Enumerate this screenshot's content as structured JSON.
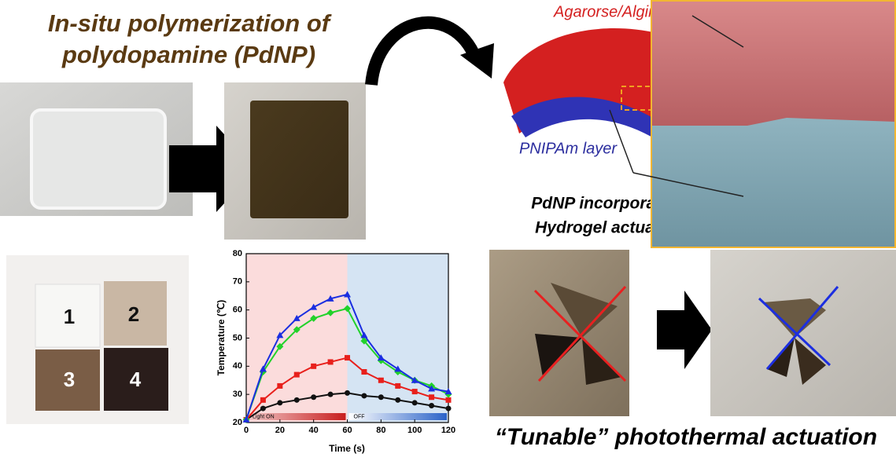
{
  "title": [
    "In-situ polymerization of",
    "polydopamine (PdNP)"
  ],
  "layer_labels": {
    "outer": "Agarorse/Alginate layer",
    "inner": "PNIPAm layer"
  },
  "actuator_caption": [
    "PdNP incorporated",
    "Hydrogel actuator"
  ],
  "sample_labels": [
    "1",
    "2",
    "3",
    "4"
  ],
  "bottom_caption": "“Tunable” photothermal actuation",
  "chart_data": {
    "type": "line",
    "x_label": "Time (s)",
    "y_label": "Temperature (℃)",
    "x": [
      0,
      10,
      20,
      30,
      40,
      50,
      60,
      70,
      80,
      90,
      100,
      110,
      120
    ],
    "series": [
      {
        "color": "#111111",
        "marker": "circle",
        "values": [
          21,
          25,
          27,
          28,
          29,
          30,
          30.5,
          29.5,
          29,
          28,
          27,
          26,
          25
        ]
      },
      {
        "color": "#e8201c",
        "marker": "square",
        "values": [
          21,
          28,
          33,
          37,
          40,
          41.5,
          43,
          38,
          35,
          33,
          31,
          29,
          28
        ]
      },
      {
        "color": "#22d22a",
        "marker": "diamond",
        "values": [
          21,
          38,
          47,
          53,
          57,
          59,
          60.5,
          49,
          42,
          38,
          35,
          33,
          30
        ]
      },
      {
        "color": "#1a2ee0",
        "marker": "triangle",
        "values": [
          21,
          39,
          51,
          57,
          61,
          64,
          65.5,
          51,
          43,
          39,
          35,
          32,
          31
        ]
      }
    ],
    "spans": [
      {
        "label": "Light ON",
        "from": 0,
        "to": 60,
        "color": "#fbdcdc"
      },
      {
        "label": "OFF",
        "from": 60,
        "to": 120,
        "color": "#d5e4f3"
      }
    ],
    "xlim": [
      0,
      120
    ],
    "xticks": [
      0,
      20,
      40,
      60,
      80,
      100,
      120
    ],
    "ylim": [
      20,
      80
    ],
    "yticks": [
      20,
      30,
      40,
      50,
      60,
      70,
      80
    ]
  }
}
